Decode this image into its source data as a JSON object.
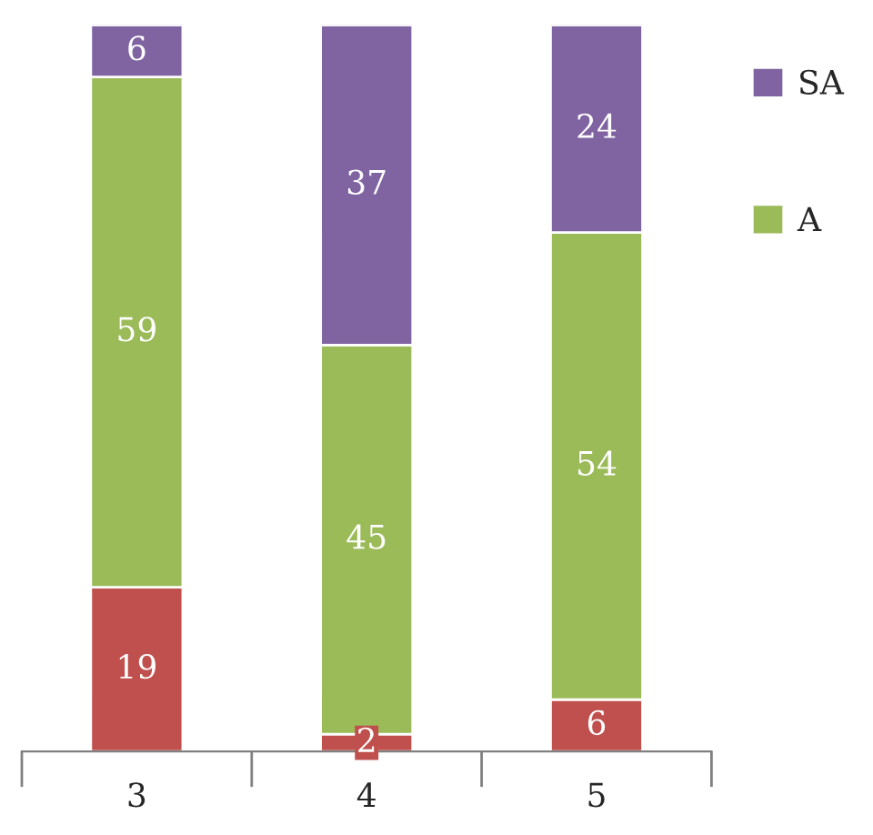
{
  "chart_data": {
    "type": "bar",
    "stacked": true,
    "data_labels": true,
    "legend": "right",
    "categories": [
      "3",
      "4",
      "5"
    ],
    "series": [
      {
        "color": "#c0504d",
        "values": [
          19,
          2,
          6
        ]
      },
      {
        "name": "A",
        "color": "#9bbb59",
        "values": [
          59,
          45,
          54
        ]
      },
      {
        "name": "SA",
        "color": "#8064a2",
        "values": [
          6,
          37,
          24
        ]
      }
    ]
  }
}
